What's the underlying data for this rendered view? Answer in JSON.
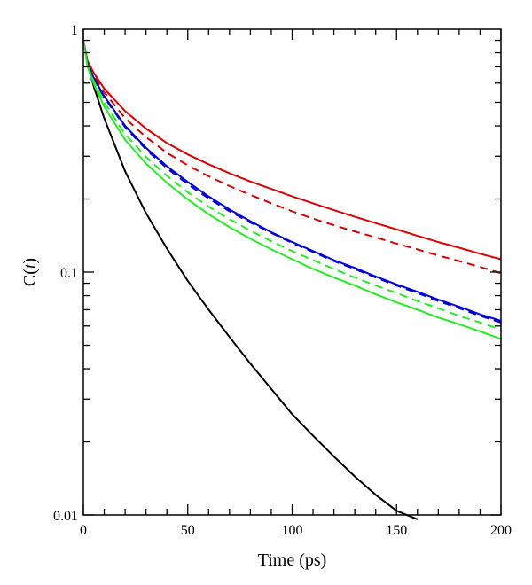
{
  "chart_data": {
    "type": "line",
    "xlabel": "Time (ps)",
    "ylabel": {
      "base": "C(",
      "var": "t",
      "close": ")"
    },
    "xlim": [
      0,
      200
    ],
    "ylim": [
      0.01,
      1
    ],
    "yscale": "log",
    "grid": false,
    "x_ticks": [
      {
        "value": 0,
        "label": "0"
      },
      {
        "value": 50,
        "label": "50"
      },
      {
        "value": 100,
        "label": "100"
      },
      {
        "value": 150,
        "label": "150"
      },
      {
        "value": 200,
        "label": "200"
      }
    ],
    "y_ticks": [
      {
        "value": 0.01,
        "label": "0.01"
      },
      {
        "value": 0.1,
        "label": "0.1"
      },
      {
        "value": 1,
        "label": "1"
      }
    ],
    "series": [
      {
        "color": "#000000",
        "dash": "solid",
        "x": [
          0,
          2,
          5,
          10,
          20,
          30,
          40,
          50,
          60,
          70,
          80,
          90,
          100,
          110,
          120,
          130,
          140,
          150,
          160
        ],
        "y": [
          0.9,
          0.72,
          0.58,
          0.43,
          0.26,
          0.175,
          0.125,
          0.092,
          0.07,
          0.054,
          0.042,
          0.033,
          0.026,
          0.0212,
          0.0174,
          0.0144,
          0.0121,
          0.0104,
          0.0096
        ]
      },
      {
        "color": "#dd0000",
        "dash": "solid",
        "x": [
          0,
          2,
          5,
          10,
          20,
          30,
          40,
          50,
          60,
          70,
          80,
          90,
          100,
          110,
          120,
          130,
          140,
          150,
          160,
          170,
          180,
          190,
          200
        ],
        "y": [
          0.9,
          0.74,
          0.66,
          0.57,
          0.46,
          0.39,
          0.34,
          0.305,
          0.278,
          0.255,
          0.236,
          0.22,
          0.205,
          0.192,
          0.18,
          0.169,
          0.159,
          0.15,
          0.141,
          0.133,
          0.126,
          0.119,
          0.113
        ]
      },
      {
        "color": "#dd0000",
        "dash": "dashed",
        "x": [
          0,
          2,
          5,
          10,
          20,
          30,
          40,
          50,
          60,
          70,
          80,
          90,
          100,
          110,
          120,
          130,
          140,
          150,
          160,
          170,
          180,
          190,
          200
        ],
        "y": [
          0.9,
          0.73,
          0.645,
          0.55,
          0.43,
          0.36,
          0.31,
          0.275,
          0.248,
          0.226,
          0.208,
          0.192,
          0.178,
          0.166,
          0.156,
          0.147,
          0.139,
          0.131,
          0.124,
          0.117,
          0.111,
          0.105,
          0.099
        ]
      },
      {
        "color": "#0000dd",
        "dash": "solid",
        "x": [
          0,
          2,
          5,
          10,
          20,
          30,
          40,
          50,
          60,
          70,
          80,
          90,
          100,
          110,
          120,
          130,
          140,
          150,
          160,
          170,
          180,
          190,
          200
        ],
        "y": [
          0.9,
          0.72,
          0.63,
          0.53,
          0.4,
          0.325,
          0.273,
          0.235,
          0.205,
          0.181,
          0.162,
          0.146,
          0.133,
          0.122,
          0.112,
          0.104,
          0.096,
          0.089,
          0.083,
          0.077,
          0.072,
          0.067,
          0.063
        ]
      },
      {
        "color": "#0000dd",
        "dash": "dashed",
        "x": [
          0,
          2,
          5,
          10,
          20,
          30,
          40,
          50,
          60,
          70,
          80,
          90,
          100,
          110,
          120,
          130,
          140,
          150,
          160,
          170,
          180,
          190,
          200
        ],
        "y": [
          0.9,
          0.72,
          0.625,
          0.525,
          0.395,
          0.32,
          0.268,
          0.23,
          0.201,
          0.178,
          0.16,
          0.145,
          0.132,
          0.121,
          0.111,
          0.103,
          0.095,
          0.088,
          0.082,
          0.076,
          0.071,
          0.066,
          0.062
        ]
      },
      {
        "color": "#22ee22",
        "dash": "dashed",
        "x": [
          0,
          2,
          5,
          10,
          20,
          30,
          40,
          50,
          60,
          70,
          80,
          90,
          100,
          110,
          120,
          130,
          140,
          150,
          160,
          170,
          180,
          190,
          200
        ],
        "y": [
          0.9,
          0.71,
          0.61,
          0.5,
          0.37,
          0.298,
          0.249,
          0.213,
          0.186,
          0.165,
          0.148,
          0.134,
          0.122,
          0.112,
          0.103,
          0.095,
          0.088,
          0.082,
          0.076,
          0.071,
          0.066,
          0.062,
          0.058
        ]
      },
      {
        "color": "#22ee22",
        "dash": "solid",
        "x": [
          0,
          2,
          5,
          10,
          20,
          30,
          40,
          50,
          60,
          70,
          80,
          90,
          100,
          110,
          120,
          130,
          140,
          150,
          160,
          170,
          180,
          190,
          200
        ],
        "y": [
          0.9,
          0.7,
          0.595,
          0.48,
          0.35,
          0.28,
          0.233,
          0.199,
          0.173,
          0.153,
          0.137,
          0.124,
          0.113,
          0.103,
          0.095,
          0.088,
          0.081,
          0.075,
          0.07,
          0.065,
          0.061,
          0.057,
          0.053
        ]
      }
    ]
  }
}
